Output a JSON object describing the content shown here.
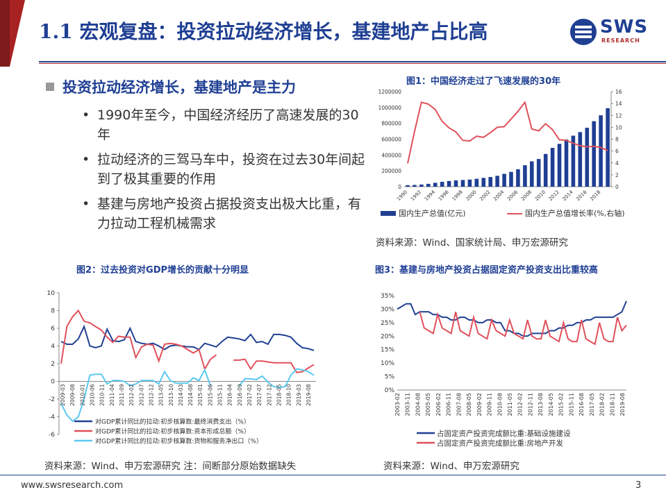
{
  "header": {
    "title": "1.1 宏观复盘：投资拉动经济增长，基建地产占比高",
    "logo_text": "SWS",
    "logo_sub": "RESEARCH"
  },
  "section": {
    "heading": "投资拉动经济增长，基建地产是主力",
    "bullets": [
      "1990年至今，中国经济经历了高速发展的30年",
      "拉动经济的三驾马车中，投资在过去30年间起到了极其重要的作用",
      "基建与房地产投资占据投资支出极大比重，有力拉动工程机械需求"
    ]
  },
  "figures": {
    "fig1_title": "图1：中国经济走过了飞速发展的30年",
    "fig1_source": "资料来源：Wind、国家统计局、申万宏源研究",
    "fig2_title": "图2：过去投资对GDP增长的贡献十分明显",
    "fig2_source": "资料来源：Wind、申万宏源研究 注：间断部分原始数据缺失",
    "fig3_title": "图3：基建与房地产投资占据固定资产投资支出比重较高",
    "fig3_source": "资料来源：Wind、申万宏源研究"
  },
  "footer": {
    "url": "www.swsresearch.com",
    "page": "3"
  },
  "colors": {
    "navy": "#1f3f93",
    "red": "#e0505a",
    "cyan": "#5bc8f0",
    "dark_red": "#7d1a1a"
  },
  "chart_data": [
    {
      "type": "bar+line",
      "x": [
        "1990",
        "1991",
        "1992",
        "1993",
        "1994",
        "1995",
        "1996",
        "1997",
        "1998",
        "1999",
        "2000",
        "2001",
        "2002",
        "2003",
        "2004",
        "2005",
        "2006",
        "2007",
        "2008",
        "2009",
        "2010",
        "2011",
        "2012",
        "2013",
        "2014",
        "2015",
        "2016",
        "2017",
        "2018",
        "2019"
      ],
      "x_tick_labels": [
        "1990",
        "1992",
        "1994",
        "1996",
        "1998",
        "2000",
        "2002",
        "2004",
        "2006",
        "2008",
        "2010",
        "2012",
        "2014",
        "2016",
        "2018"
      ],
      "series": [
        {
          "name": "国内生产总值(亿元)",
          "kind": "bar",
          "axis": "left",
          "values": [
            18873,
            22006,
            27195,
            35673,
            48638,
            61340,
            71814,
            79715,
            85196,
            90564,
            100280,
            110863,
            121717,
            137422,
            161840,
            187319,
            219439,
            270232,
            319516,
            349081,
            413030,
            489301,
            540367,
            595244,
            643974,
            689052,
            743586,
            827122,
            900309,
            990865
          ]
        },
        {
          "name": "国内生产总值增长率(%,右轴)",
          "kind": "line",
          "axis": "right",
          "values": [
            3.9,
            9.3,
            14.2,
            13.9,
            13.0,
            11.0,
            9.9,
            9.2,
            7.8,
            7.7,
            8.5,
            8.3,
            9.1,
            10.0,
            10.1,
            11.4,
            12.7,
            14.2,
            9.7,
            9.4,
            10.6,
            9.6,
            7.9,
            7.8,
            7.3,
            6.9,
            6.7,
            6.8,
            6.6,
            6.1
          ]
        }
      ],
      "y_left_ticks": [
        "0",
        "200000",
        "400000",
        "600000",
        "800000",
        "1000000",
        "1200000"
      ],
      "y_right_ticks": [
        "0",
        "2",
        "4",
        "6",
        "8",
        "10",
        "12",
        "14",
        "16"
      ],
      "ylim_left": [
        0,
        1200000
      ],
      "ylim_right": [
        0,
        16
      ],
      "legend": [
        "国内生产总值(亿元)",
        "国内生产总值增长率(%,右轴)"
      ]
    },
    {
      "type": "line",
      "x_tick_labels": [
        "2009-03",
        "2009-08",
        "2010-01",
        "2010-06",
        "2010-11",
        "2011-04",
        "2011-09",
        "2012-02",
        "2012-07",
        "2012-12",
        "2013-05",
        "2013-10",
        "2014-03",
        "2014-08",
        "2015-01",
        "2015-06",
        "2015-11",
        "2016-04",
        "2016-09",
        "2017-02",
        "2017-07",
        "2017-12",
        "2018-05",
        "2018-10",
        "2019-03",
        "2019-08"
      ],
      "y_ticks": [
        "-6",
        "-4",
        "-2",
        "0",
        "2",
        "4",
        "6",
        "8",
        "10"
      ],
      "ylim": [
        -6,
        10
      ],
      "series": [
        {
          "name": "对GDP累计同比的拉动:初步核算数:最终消费支出（%）",
          "color": "#1f3f93",
          "values": [
            4.5,
            4.2,
            4.2,
            4.8,
            6.2,
            4.0,
            3.8,
            4.0,
            5.9,
            4.6,
            4.5,
            4.7,
            6.0,
            4.5,
            4.3,
            4.2,
            4.3,
            4.0,
            3.6,
            4.0,
            4.1,
            4.0,
            3.9,
            3.9,
            3.6,
            4.3,
            4.1,
            3.9,
            4.5,
            5.0,
            4.9,
            4.8,
            4.6,
            5.3,
            4.4,
            4.5,
            4.2,
            5.3,
            5.3,
            5.2,
            5.0,
            4.3,
            3.8,
            3.7,
            3.5
          ]
        },
        {
          "name": "对GDP累计同比的拉动:初步核算数:资本形成总额（%）",
          "color": "#e0505a",
          "values": [
            2.0,
            6.2,
            7.3,
            8.0,
            6.8,
            6.6,
            6.2,
            5.8,
            5.0,
            4.4,
            5.1,
            5.0,
            5.0,
            2.7,
            3.9,
            4.2,
            4.1,
            2.3,
            4.2,
            4.3,
            4.2,
            4.0,
            3.6,
            3.2,
            3.6,
            1.4,
            2.5,
            3.0,
            null,
            null,
            2.4,
            2.4,
            2.5,
            1.4,
            2.3,
            2.3,
            2.2,
            2.1,
            2.1,
            2.1,
            2.1,
            1.0,
            1.1,
            1.5,
            1.9
          ]
        },
        {
          "name": "对GDP累计同比的拉动:初步核算数:货物和服务净出口（%）",
          "color": "#5bc8f0",
          "values": [
            -2.5,
            -3.8,
            -4.5,
            -4.0,
            -2.0,
            0.7,
            0.8,
            0.8,
            -0.3,
            0.1,
            0.1,
            0.0,
            -0.5,
            -0.3,
            0.1,
            0.1,
            0.1,
            -0.3,
            1.1,
            0.1,
            -0.2,
            -0.2,
            -0.2,
            0.4,
            0.1,
            1.3,
            -0.5,
            null,
            null,
            null,
            null,
            -0.5,
            0.3,
            0.3,
            0.2,
            0.6,
            -0.1,
            -0.6,
            -0.7,
            -0.6,
            0.7,
            1.4,
            1.3,
            1.1,
            0.7
          ]
        }
      ]
    },
    {
      "type": "line",
      "x_tick_labels": [
        "2003-02",
        "2003-11",
        "2004-08",
        "2005-05",
        "2006-02",
        "2006-11",
        "2007-08",
        "2008-05",
        "2009-02",
        "2009-11",
        "2010-08",
        "2011-05",
        "2012-02",
        "2012-11",
        "2013-08",
        "2014-05",
        "2015-02",
        "2015-11",
        "2016-08",
        "2017-05",
        "2018-02",
        "2018-11",
        "2019-08"
      ],
      "y_ticks": [
        "0%",
        "5%",
        "10%",
        "15%",
        "20%",
        "25%",
        "30%",
        "35%"
      ],
      "ylim": [
        0,
        35
      ],
      "series": [
        {
          "name": "占固定资产投资完成额比重:基础设施建设",
          "color": "#1f3f93",
          "values": [
            30,
            31,
            32,
            32,
            28,
            29,
            29,
            29,
            28,
            28,
            27,
            27,
            26,
            26,
            27,
            27,
            26,
            26,
            25,
            25,
            26,
            26,
            25,
            25,
            22,
            22,
            21,
            21,
            20,
            20,
            21,
            21,
            21,
            21,
            22,
            22,
            23,
            23,
            24,
            24,
            25,
            25,
            26,
            26,
            27,
            27,
            27,
            27,
            27,
            28,
            29,
            33
          ]
        },
        {
          "name": "占固定资产投资完成额比重:房地产开发",
          "color": "#e0505a",
          "values": [
            null,
            null,
            null,
            null,
            null,
            29,
            23,
            22,
            21,
            28,
            23,
            22,
            21,
            29,
            22,
            21,
            20,
            27,
            21,
            20,
            19,
            26,
            22,
            21,
            20,
            26,
            21,
            20,
            19,
            26,
            20,
            19,
            19,
            26,
            20,
            19,
            18,
            25,
            19,
            18,
            18,
            26,
            19,
            18,
            17,
            25,
            19,
            18,
            18,
            27,
            22,
            24
          ]
        }
      ]
    }
  ]
}
